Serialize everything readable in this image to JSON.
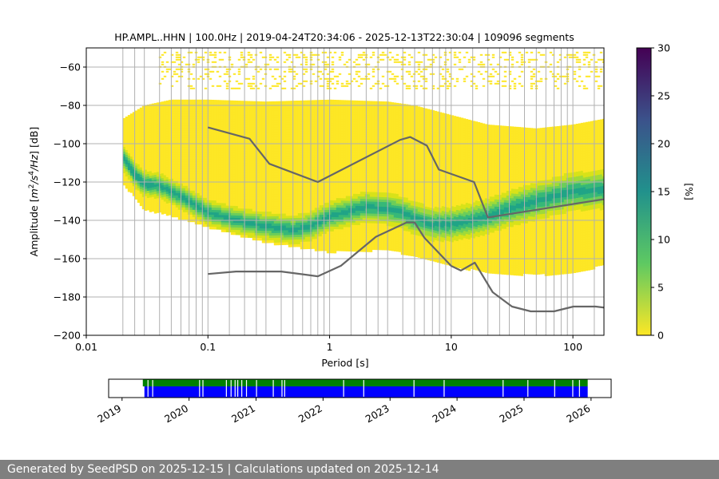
{
  "chart_data": [
    {
      "type": "heatmap",
      "title": "HP.AMPL..HHN | 100.0Hz | 2019-04-24T20:34:06 - 2025-12-13T22:30:04 | 109096 segments",
      "xlabel": "Period [s]",
      "ylabel_parts": [
        "Amplitude [",
        "m",
        "2",
        "/",
        "s",
        "4",
        "/Hz",
        "] [dB]"
      ],
      "x_scale": "log",
      "xlim": [
        0.01,
        180
      ],
      "ylim": [
        -200,
        -50
      ],
      "grid": true,
      "x_ticks": [
        {
          "value": 0.01,
          "label": "0.01"
        },
        {
          "value": 0.1,
          "label": "0.1"
        },
        {
          "value": 1,
          "label": "1"
        },
        {
          "value": 10,
          "label": "10"
        },
        {
          "value": 100,
          "label": "100"
        }
      ],
      "y_ticks": [
        {
          "value": -60,
          "label": "−60"
        },
        {
          "value": -80,
          "label": "−80"
        },
        {
          "value": -100,
          "label": "−100"
        },
        {
          "value": -120,
          "label": "−120"
        },
        {
          "value": -140,
          "label": "−140"
        },
        {
          "value": -160,
          "label": "−160"
        },
        {
          "value": -180,
          "label": "−180"
        },
        {
          "value": -200,
          "label": "−200"
        }
      ],
      "vertical_gridlines_period": [
        0.02,
        0.025,
        0.03,
        0.04,
        0.05,
        0.06,
        0.07,
        0.08,
        0.09,
        0.1,
        0.15,
        0.2,
        0.25,
        0.3,
        0.4,
        0.5,
        0.6,
        0.7,
        0.8,
        0.9,
        1,
        1.5,
        2,
        2.5,
        3,
        4,
        5,
        6,
        7,
        8,
        9,
        10,
        15,
        20,
        25,
        30,
        40,
        50,
        60,
        70,
        80,
        90,
        100,
        150
      ],
      "density_mode": {
        "period": [
          0.02,
          0.025,
          0.03,
          0.04,
          0.05,
          0.07,
          0.1,
          0.15,
          0.2,
          0.3,
          0.5,
          0.7,
          1,
          1.5,
          2,
          3,
          4,
          5,
          7,
          10,
          15,
          20,
          30,
          50,
          100,
          180
        ],
        "amplitude": [
          -107,
          -116,
          -121,
          -122,
          -125,
          -130,
          -136,
          -139,
          -141,
          -143,
          -145,
          -143,
          -138,
          -135,
          -133,
          -134,
          -136,
          -139,
          -142,
          -142,
          -140,
          -138,
          -134,
          -130,
          -125,
          -124
        ]
      },
      "density_envelope": {
        "period": [
          0.02,
          0.03,
          0.05,
          0.1,
          0.3,
          1,
          3,
          5,
          10,
          20,
          50,
          100,
          180
        ],
        "upper": [
          -87,
          -80,
          -77,
          -77,
          -78,
          -77,
          -78,
          -80,
          -85,
          -90,
          -92,
          -90,
          -87
        ],
        "lower": [
          -120,
          -134,
          -137,
          -143,
          -151,
          -156,
          -155,
          -158,
          -163,
          -167,
          -168,
          -167,
          -163
        ]
      },
      "sparse_band": {
        "top": -52,
        "bottom": -72
      },
      "noise_models": [
        {
          "period": [
            0.1,
            0.22,
            0.32,
            0.8,
            3.8,
            4.6,
            6.3,
            7.9,
            15.4,
            20,
            354.8
          ],
          "amplitude": [
            -91.5,
            -97.4,
            -110.5,
            -120.0,
            -98.0,
            -96.5,
            -101.0,
            -113.5,
            -120.0,
            -138.5,
            -126.0
          ]
        },
        {
          "period": [
            0.1,
            0.17,
            0.4,
            0.8,
            1.24,
            2.4,
            4.3,
            5,
            6,
            10,
            12,
            15.6,
            21.9,
            31.6,
            45,
            70,
            101,
            154,
            328.9
          ],
          "amplitude": [
            -168,
            -166.7,
            -166.7,
            -169.2,
            -163.7,
            -148.6,
            -141.1,
            -141.1,
            -149.0,
            -163.8,
            -166.2,
            -162.1,
            -177.5,
            -185.0,
            -187.5,
            -187.5,
            -185.0,
            -185.0,
            -187.5
          ]
        }
      ],
      "colorbar": {
        "label": "[%]",
        "range": [
          0,
          30
        ],
        "ticks": [
          0,
          5,
          10,
          15,
          20,
          25,
          30
        ],
        "colors": [
          "#fde725",
          "#5ec962",
          "#21918c",
          "#3b528b",
          "#440154"
        ]
      },
      "colors": {
        "model_line": "#666666",
        "grid": "#b0b0b0"
      }
    },
    {
      "type": "timeline",
      "x_ticks": [
        "2019",
        "2020",
        "2021",
        "2022",
        "2023",
        "2024",
        "2025",
        "2026"
      ],
      "x_tick_values": [
        2019,
        2020,
        2021,
        2022,
        2023,
        2024,
        2025,
        2026
      ],
      "xlim": [
        2018.8,
        2026.3
      ],
      "coverage": [
        2019.31,
        2025.95
      ],
      "gaps": [
        2019.38,
        2019.45,
        2020.15,
        2020.2,
        2020.55,
        2020.62,
        2020.68,
        2020.72,
        2020.78,
        2020.85,
        2021.0,
        2021.25,
        2021.38,
        2021.42,
        2022.3,
        2022.6,
        2023.35,
        2023.8,
        2024.68,
        2025.05,
        2025.45,
        2025.72,
        2025.82
      ],
      "colors": {
        "available": "#008000",
        "processed": "#0000ff"
      }
    }
  ],
  "footer": {
    "text": "Generated by SeedPSD on 2025-12-15 | Calculations updated on 2025-12-14"
  }
}
